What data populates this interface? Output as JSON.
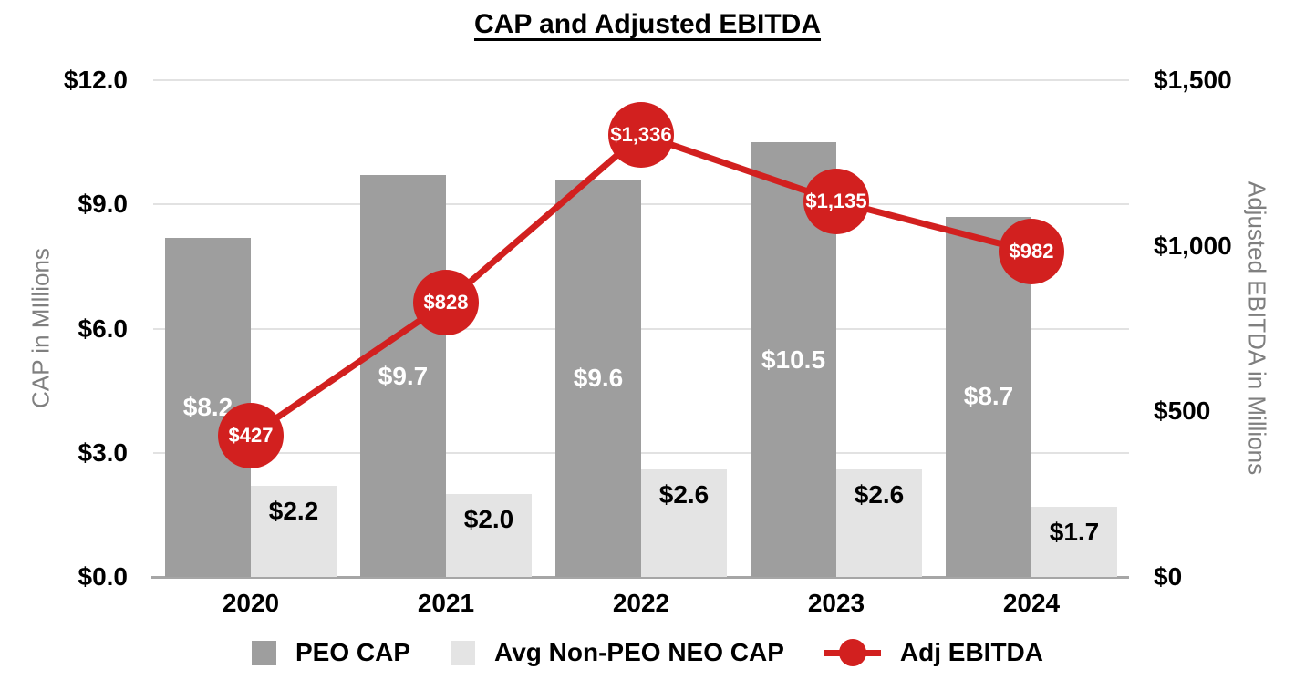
{
  "chart_data": {
    "type": "bar",
    "subtype": "combo-bar-line",
    "title": "CAP and Adjusted EBITDA",
    "categories": [
      "2020",
      "2021",
      "2022",
      "2023",
      "2024"
    ],
    "series": [
      {
        "name": "PEO CAP",
        "type": "bar",
        "axis": "left",
        "values": [
          8.2,
          9.7,
          9.6,
          10.5,
          8.7
        ],
        "labels": [
          "$8.2",
          "$9.7",
          "$9.6",
          "$10.5",
          "$8.7"
        ],
        "color": "#9e9e9e",
        "label_color": "#ffffff"
      },
      {
        "name": "Avg Non-PEO NEO CAP",
        "type": "bar",
        "axis": "left",
        "values": [
          2.2,
          2.0,
          2.6,
          2.6,
          1.7
        ],
        "labels": [
          "$2.2",
          "$2.0",
          "$2.6",
          "$2.6",
          "$1.7"
        ],
        "color": "#e4e4e4",
        "label_color": "#000000"
      },
      {
        "name": "Adj EBITDA",
        "type": "line",
        "axis": "right",
        "values": [
          427,
          828,
          1336,
          1135,
          982
        ],
        "labels": [
          "$427",
          "$828",
          "$1,336",
          "$1,135",
          "$982"
        ],
        "color": "#d2201f",
        "label_color": "#ffffff"
      }
    ],
    "left_axis": {
      "title": "CAP in MIllions",
      "range": [
        0,
        12
      ],
      "ticks": [
        {
          "label": "$12.0",
          "value": 12
        },
        {
          "label": "$9.0",
          "value": 9
        },
        {
          "label": "$6.0",
          "value": 6
        },
        {
          "label": "$3.0",
          "value": 3
        },
        {
          "label": "$0.0",
          "value": 0
        }
      ]
    },
    "right_axis": {
      "title": "Adjusted EBITDA in Millions",
      "range": [
        0,
        1500
      ],
      "ticks": [
        {
          "label": "$1,500",
          "value": 1500
        },
        {
          "label": "$1,000",
          "value": 1000
        },
        {
          "label": "$500",
          "value": 500
        },
        {
          "label": "$0",
          "value": 0
        }
      ]
    },
    "legend": [
      {
        "label": "PEO CAP",
        "swatch": "square",
        "color": "#9e9e9e"
      },
      {
        "label": "Avg Non-PEO NEO CAP",
        "swatch": "square",
        "color": "#e4e4e4"
      },
      {
        "label": "Adj EBITDA",
        "swatch": "line-circle",
        "color": "#d2201f"
      }
    ],
    "grid": true,
    "legend_position": "bottom",
    "style_colors": {
      "gridline": "#e2e2e2",
      "baseline": "#a6a6a6",
      "axis_title_text": "#7f7f7f",
      "tick_text": "#000000",
      "background": "#ffffff"
    }
  }
}
